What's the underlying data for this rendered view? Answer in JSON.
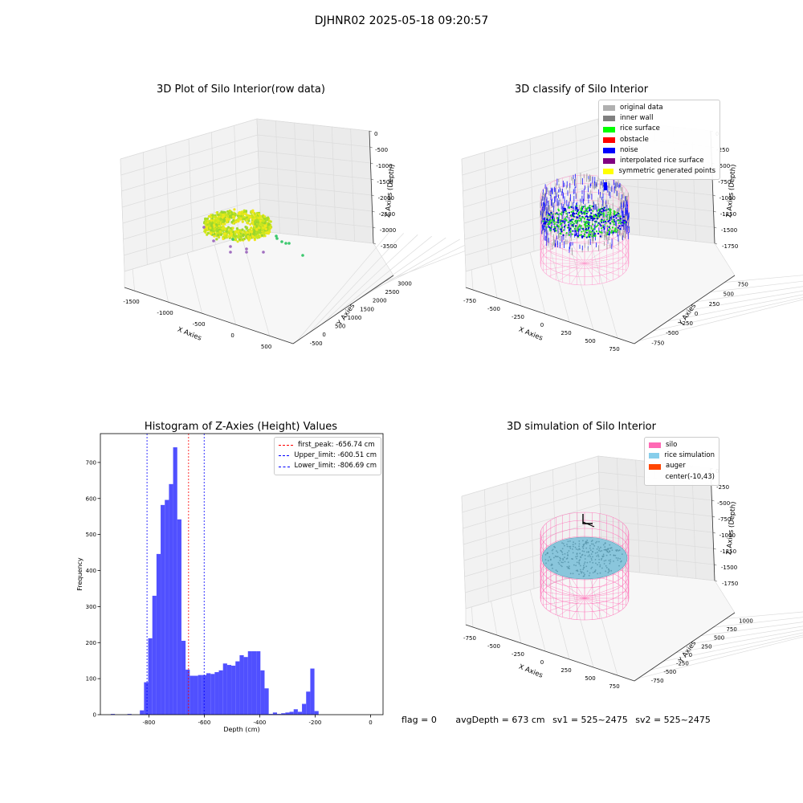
{
  "suptitle": "DJHNR02 2025-05-18 09:20:57",
  "chart_data": [
    {
      "type": "scatter",
      "title": "3D Plot of Silo Interior(row data)",
      "xlabel": "X Axies",
      "ylabel": "Y Axies",
      "zlabel": "Z Axies (Depth)",
      "x_ticks": [
        "-1500",
        "-1000",
        "-500",
        "0",
        "500"
      ],
      "y_ticks": [
        "-500",
        "0",
        "500",
        "1000",
        "1500",
        "2000",
        "2500",
        "3000"
      ],
      "z_ticks": [
        "0",
        "-500",
        "-1000",
        "-1500",
        "-2000",
        "-2500",
        "-3000",
        "-3500"
      ],
      "xlim": [
        -1600,
        800
      ],
      "ylim": [
        -500,
        3100
      ],
      "zlim": [
        -3800,
        0
      ],
      "grid": true
    },
    {
      "type": "scatter",
      "title": "3D classify of Silo Interior",
      "xlabel": "X Axies",
      "ylabel": "Y Axies",
      "zlabel": "Z Axies (Depth)",
      "x_ticks": [
        "-750",
        "-500",
        "-250",
        "0",
        "250",
        "500",
        "750"
      ],
      "y_ticks": [
        "-750",
        "-500",
        "-250",
        "0",
        "250",
        "500",
        "750"
      ],
      "z_ticks": [
        "0",
        "-250",
        "-500",
        "-750",
        "-1000",
        "-1250",
        "-1500",
        "-1750"
      ],
      "legend_position": "top-right",
      "series": [
        {
          "name": "original data",
          "color": "#b0b0b0"
        },
        {
          "name": "inner wall",
          "color": "#808080"
        },
        {
          "name": "rice surface",
          "color": "#00ff00"
        },
        {
          "name": "obstacle",
          "color": "#ff0000"
        },
        {
          "name": "noise",
          "color": "#0000ff"
        },
        {
          "name": "interpolated rice surface",
          "color": "#800080"
        },
        {
          "name": "symmetric generated points",
          "color": "#ffff00"
        }
      ],
      "grid": true
    },
    {
      "type": "bar",
      "title": "Histogram of Z-Axies (Height) Values",
      "xlabel": "Depth (cm)",
      "ylabel": "Frequency",
      "xlim": [
        -975,
        45
      ],
      "ylim": [
        0,
        780
      ],
      "x_ticks": [
        -800,
        -600,
        -400,
        -200,
        0
      ],
      "y_ticks": [
        0,
        100,
        200,
        300,
        400,
        500,
        600,
        700
      ],
      "bar_color": "#5050ff",
      "bins_start": -937.5,
      "bin_width": 15,
      "values": [
        2,
        0,
        0,
        0,
        2,
        0,
        0,
        12,
        90,
        212,
        330,
        446,
        582,
        596,
        640,
        742,
        542,
        205,
        125,
        108,
        108,
        110,
        110,
        115,
        113,
        118,
        123,
        142,
        138,
        136,
        148,
        165,
        160,
        176,
        176,
        176,
        123,
        73,
        2,
        6,
        2,
        4,
        6,
        8,
        15,
        8,
        30,
        64,
        128,
        10
      ],
      "lines": [
        {
          "name": "first_peak: -656.74 cm",
          "x": -656.74,
          "color": "#ff0000"
        },
        {
          "name": "Upper_limit: -600.51 cm",
          "x": -600.51,
          "color": "#0000ff"
        },
        {
          "name": "Lower_limit: -806.69 cm",
          "x": -806.69,
          "color": "#0000ff"
        }
      ],
      "legend_position": "top-right"
    },
    {
      "type": "scatter",
      "title": "3D simulation of Silo Interior",
      "xlabel": "X Axies",
      "ylabel": "Y Axies",
      "zlabel": "Z Axies (Depth)",
      "x_ticks": [
        "-750",
        "-500",
        "-250",
        "0",
        "250",
        "500",
        "750"
      ],
      "y_ticks": [
        "-750",
        "-500",
        "-250",
        "0",
        "250",
        "500",
        "750",
        "1000"
      ],
      "z_ticks": [
        "0",
        "-250",
        "-500",
        "-750",
        "-1000",
        "-1250",
        "-1500",
        "-1750"
      ],
      "legend_position": "top-right",
      "series": [
        {
          "name": "silo",
          "color": "#ff69b4"
        },
        {
          "name": "rice simulation",
          "color": "#87ceeb"
        },
        {
          "name": "auger",
          "color": "#ff4500"
        },
        {
          "name": "center(-10,43)",
          "color": ""
        }
      ],
      "grid": true
    }
  ],
  "status": {
    "flag": "flag = 0",
    "avg_depth": "avgDepth = 673 cm",
    "sv1": "sv1 = 525~2475",
    "sv2": "sv2 = 525~2475"
  }
}
